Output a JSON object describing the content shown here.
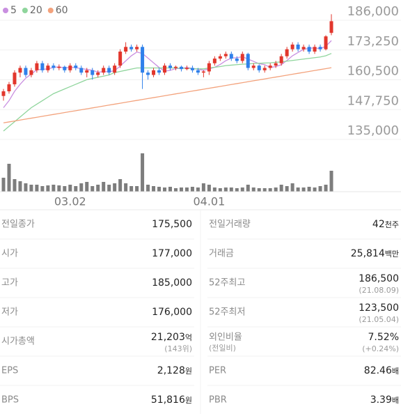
{
  "chart_data": {
    "type": "candlestick",
    "legend": [
      {
        "name": "5",
        "color": "#c98fe0"
      },
      {
        "name": "20",
        "color": "#8fd59c"
      },
      {
        "name": "60",
        "color": "#f3a27c"
      }
    ],
    "categories": [
      null,
      null,
      null,
      null,
      null,
      null,
      null,
      null,
      null,
      null,
      null,
      null,
      "03.02",
      null,
      null,
      null,
      null,
      null,
      null,
      null,
      null,
      null,
      null,
      null,
      null,
      null,
      null,
      null,
      null,
      null,
      null,
      null,
      null,
      null,
      null,
      null,
      null,
      "04.01",
      null,
      null,
      null,
      null,
      null,
      null,
      null,
      null,
      null,
      null,
      null,
      null,
      null,
      null,
      null,
      null,
      null,
      null,
      null,
      null,
      null,
      null
    ],
    "open": [
      150000,
      152000,
      155000,
      160000,
      162000,
      159000,
      161000,
      164000,
      161000,
      163000,
      162000,
      162500,
      161000,
      163000,
      162000,
      160000,
      161000,
      159000,
      160000,
      162000,
      160000,
      163000,
      169000,
      171000,
      170000,
      171000,
      160000,
      159000,
      161000,
      160000,
      163000,
      162000,
      162500,
      161500,
      162000,
      161000,
      160000,
      160500,
      164000,
      166000,
      167000,
      168000,
      166000,
      165000,
      168000,
      162000,
      163000,
      161000,
      162000,
      163000,
      164000,
      167000,
      170000,
      172000,
      170000,
      171000,
      169000,
      171000,
      170000,
      177000
    ],
    "high": [
      153000,
      156000,
      161000,
      163000,
      163000,
      162000,
      165000,
      165000,
      164000,
      164000,
      163500,
      163000,
      164000,
      164000,
      163000,
      162000,
      162000,
      161000,
      163000,
      163000,
      164000,
      170000,
      173000,
      172000,
      172000,
      172000,
      161000,
      162000,
      162000,
      164000,
      164000,
      163000,
      163000,
      163000,
      163000,
      162000,
      161000,
      165000,
      167000,
      168000,
      169000,
      169000,
      167000,
      169000,
      168500,
      164000,
      163500,
      163000,
      164000,
      165000,
      168000,
      171000,
      173000,
      173000,
      172000,
      172000,
      172000,
      172000,
      176000,
      185000
    ],
    "low": [
      148000,
      151000,
      154000,
      158000,
      158000,
      158000,
      160000,
      160000,
      160000,
      161000,
      161000,
      160000,
      160000,
      161000,
      159000,
      158000,
      157000,
      158000,
      159000,
      159000,
      159000,
      162000,
      168000,
      169000,
      169000,
      153000,
      157000,
      158000,
      159000,
      159000,
      161000,
      161000,
      160500,
      161000,
      160000,
      159000,
      158000,
      159000,
      163000,
      165000,
      166000,
      165000,
      164000,
      164000,
      161000,
      161000,
      160000,
      160000,
      161000,
      162000,
      163000,
      166000,
      169000,
      169000,
      169000,
      168000,
      168000,
      169000,
      169500,
      176000
    ],
    "close": [
      152000,
      155000,
      160000,
      162000,
      159000,
      161000,
      164000,
      161000,
      163000,
      162000,
      162500,
      161000,
      163000,
      162000,
      160000,
      161000,
      159000,
      160000,
      162000,
      160000,
      163000,
      169000,
      171000,
      170000,
      171000,
      160000,
      159000,
      161000,
      160000,
      163000,
      162000,
      162500,
      161500,
      162000,
      161000,
      160000,
      160500,
      164000,
      166000,
      167000,
      168000,
      166000,
      165000,
      168000,
      162000,
      163000,
      161000,
      162000,
      163000,
      164000,
      167000,
      170000,
      172000,
      170000,
      171000,
      169000,
      171000,
      170000,
      175500,
      182000
    ],
    "up_color": "#e2362c",
    "down_color": "#2f80ea",
    "ma": [
      {
        "name": "5",
        "color": "#c98fe0",
        "values": [
          145000,
          148000,
          152000,
          155000,
          157600,
          159400,
          161200,
          161400,
          161600,
          162200,
          162500,
          161900,
          162300,
          162100,
          161700,
          161400,
          161000,
          160200,
          160400,
          160400,
          160800,
          162800,
          165000,
          167200,
          168800,
          168200,
          166200,
          164200,
          162200,
          160600,
          161000,
          161700,
          161800,
          162200,
          161800,
          161400,
          161000,
          161600,
          162300,
          163500,
          165100,
          166200,
          166400,
          166800,
          165800,
          164800,
          163800,
          163400,
          162200,
          162600,
          163400,
          165200,
          167200,
          168600,
          170000,
          170400,
          170600,
          170200,
          171300,
          173700
        ]
      },
      {
        "name": "20",
        "color": "#8fd59c",
        "values": [
          135000,
          137000,
          139000,
          141000,
          143000,
          145000,
          146500,
          148000,
          149500,
          151000,
          152000,
          153000,
          154000,
          155000,
          156000,
          157000,
          157500,
          158000,
          158500,
          159000,
          160000,
          160500,
          161000,
          161500,
          162000,
          162000,
          162000,
          162000,
          162000,
          162000,
          162000,
          162000,
          161800,
          161800,
          161700,
          161600,
          161600,
          162000,
          162300,
          162600,
          163000,
          163200,
          163400,
          163600,
          163700,
          163900,
          164000,
          164100,
          164200,
          164400,
          164600,
          164900,
          165200,
          165500,
          165800,
          166100,
          166400,
          166700,
          167200,
          168200
        ]
      },
      {
        "name": "60",
        "color": "#f3a27c",
        "values": [
          138500,
          138900,
          139300,
          139700,
          140100,
          140500,
          140900,
          141300,
          141700,
          142100,
          142500,
          142900,
          143300,
          143700,
          144100,
          144500,
          144900,
          145300,
          145700,
          146100,
          146500,
          146900,
          147300,
          147700,
          148100,
          148500,
          148900,
          149300,
          149700,
          150100,
          150500,
          150900,
          151300,
          151700,
          152100,
          152500,
          152900,
          153300,
          153700,
          154100,
          154500,
          154900,
          155300,
          155700,
          156100,
          156500,
          156900,
          157300,
          157700,
          158100,
          158500,
          158900,
          159300,
          159700,
          160100,
          160500,
          160900,
          161300,
          161700,
          162100
        ]
      }
    ],
    "volume": [
      20,
      40,
      18,
      15,
      12,
      10,
      10,
      8,
      9,
      10,
      9,
      8,
      10,
      8,
      12,
      14,
      8,
      10,
      14,
      10,
      12,
      18,
      12,
      8,
      8,
      55,
      10,
      8,
      7,
      6,
      7,
      5,
      6,
      6,
      7,
      6,
      12,
      10,
      6,
      5,
      6,
      6,
      5,
      6,
      10,
      6,
      5,
      5,
      5,
      6,
      10,
      8,
      12,
      6,
      6,
      7,
      6,
      8,
      10,
      30
    ],
    "volume_color": "#7d7d7d",
    "ylim": [
      135000,
      186000
    ],
    "yticks": [
      {
        "value": 186000,
        "label": "186,000"
      },
      {
        "value": 173250,
        "label": "173,250"
      },
      {
        "value": 160500,
        "label": "160,500"
      },
      {
        "value": 147750,
        "label": "147,750"
      },
      {
        "value": 135000,
        "label": "135,000"
      }
    ],
    "grid": true
  },
  "table": {
    "left": [
      {
        "label": "전일종가",
        "value": "175,500"
      },
      {
        "label": "시가",
        "value": "177,000",
        "color": "#d93a2b"
      },
      {
        "label": "고가",
        "value": "185,000",
        "color": "#d93a2b"
      },
      {
        "label": "저가",
        "value": "176,000",
        "color": "#d93a2b"
      },
      {
        "label": "시가총액",
        "value": "21,203",
        "unit": "억",
        "sub": "(143위)"
      },
      {
        "label": "EPS",
        "value": "2,128",
        "unit": "원"
      },
      {
        "label": "BPS",
        "value": "51,816",
        "unit": "원"
      }
    ],
    "right": [
      {
        "label": "전일거래량",
        "value": "42",
        "unit": "천주"
      },
      {
        "label": "거래금",
        "value": "25,814",
        "unit": "백만"
      },
      {
        "label": "52주최고",
        "value": "186,500",
        "sub": "(21.08.09)"
      },
      {
        "label": "52주최저",
        "value": "123,500",
        "sub": "(21.05.04)"
      },
      {
        "label": "외인비율",
        "label_sub": "(전일비)",
        "value": "7.52%",
        "sub": "(+0.24%)"
      },
      {
        "label": "PER",
        "value": "82.46",
        "unit": "배"
      },
      {
        "label": "PBR",
        "value": "3.39",
        "unit": "배"
      }
    ]
  }
}
